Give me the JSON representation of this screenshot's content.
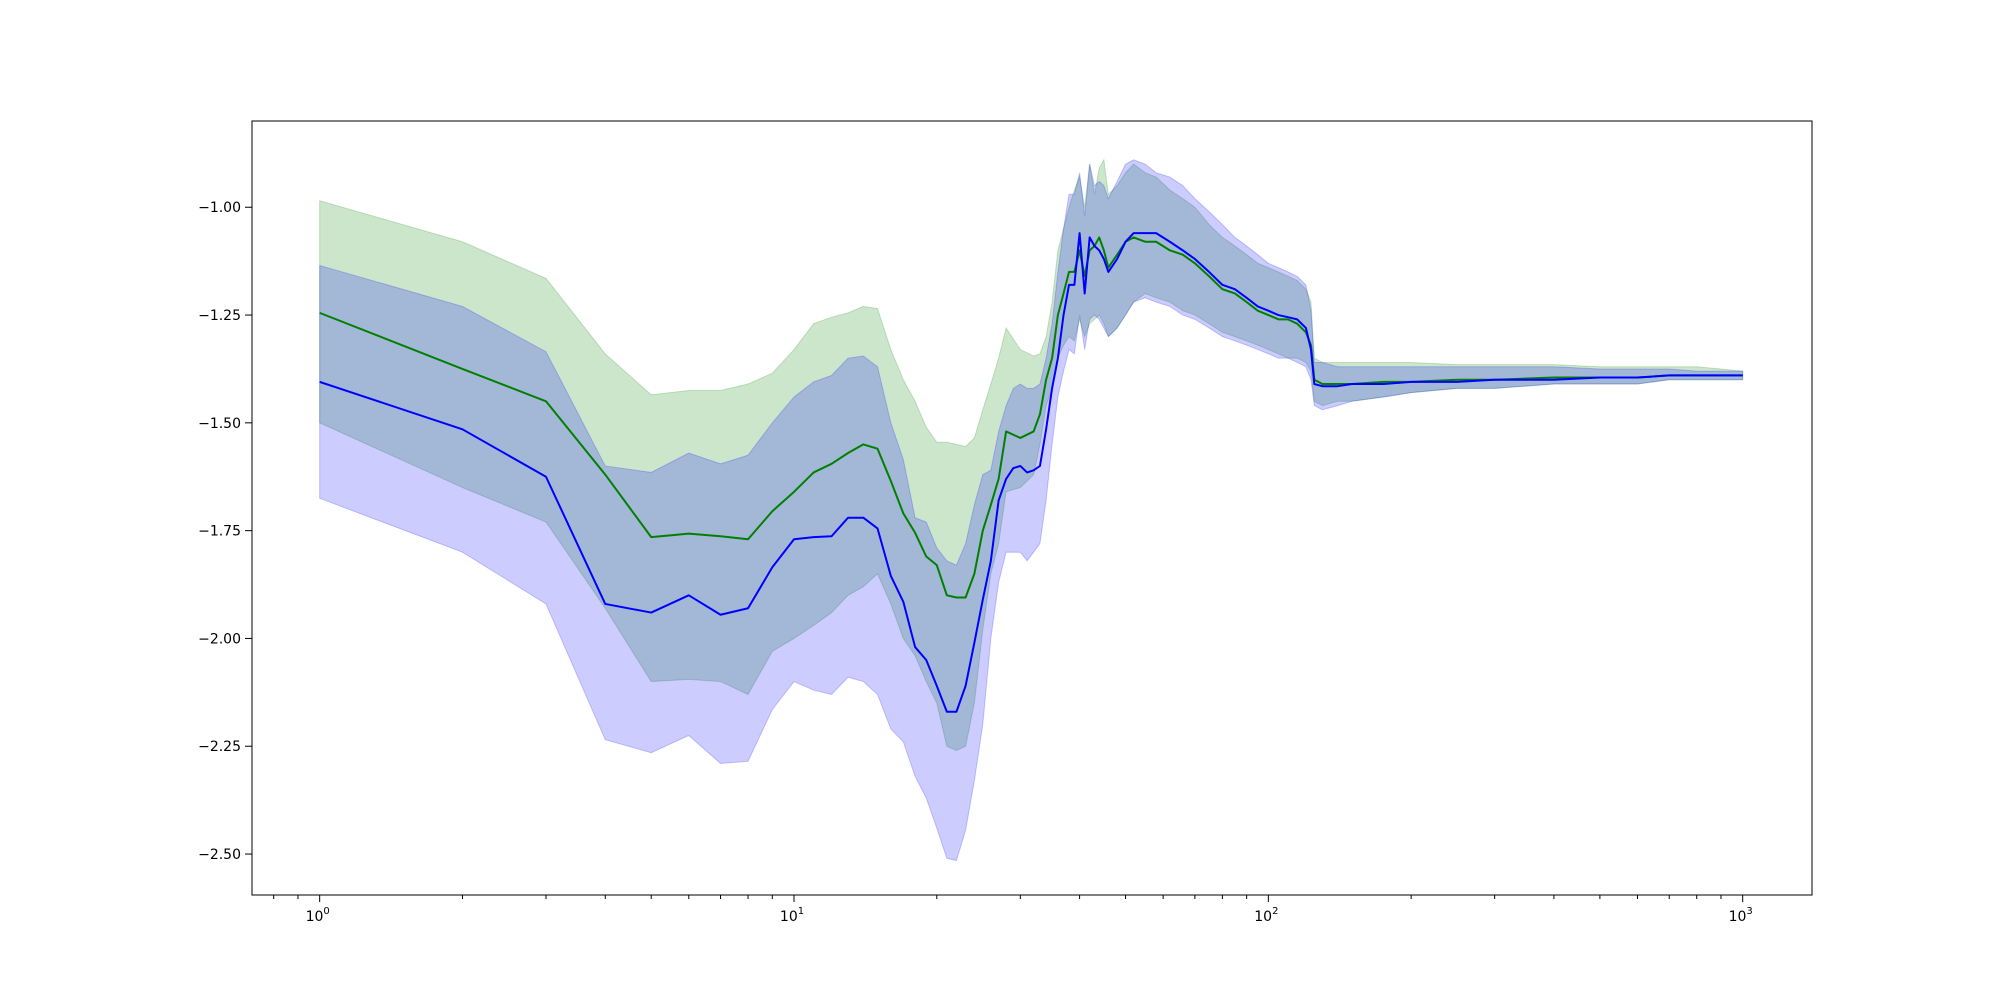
{
  "chart_data": {
    "type": "line",
    "title": "",
    "xlabel": "",
    "ylabel": "",
    "xscale": "log",
    "xlim": [
      0.72,
      1400
    ],
    "ylim": [
      -2.595,
      -0.8
    ],
    "grid": false,
    "legend": "none",
    "y_ticks": [
      -1.0,
      -1.25,
      -1.5,
      -1.75,
      -2.0,
      -2.25,
      -2.5
    ],
    "y_tick_labels": [
      "−1.00",
      "−1.25",
      "−1.50",
      "−1.75",
      "−2.00",
      "−2.25",
      "−2.50"
    ],
    "x_ticks": [
      {
        "value": 1,
        "base": "10",
        "exp": "0"
      },
      {
        "value": 10,
        "base": "10",
        "exp": "1"
      },
      {
        "value": 100,
        "base": "10",
        "exp": "2"
      },
      {
        "value": 1000,
        "base": "10",
        "exp": "3"
      }
    ],
    "series": [
      {
        "color": "#008000",
        "band_color": "#008000",
        "x": [
          1,
          2,
          3,
          4,
          5,
          6,
          7,
          8,
          9,
          10,
          11,
          12,
          13,
          14,
          15,
          16,
          17,
          18,
          19,
          20,
          21,
          22,
          23,
          24,
          25,
          26,
          27,
          28,
          30,
          32,
          33,
          34,
          35,
          36,
          37,
          38,
          39,
          40,
          41,
          42,
          43,
          44,
          45,
          46,
          48,
          50,
          52,
          55,
          58,
          62,
          66,
          70,
          75,
          80,
          85,
          90,
          95,
          100,
          105,
          110,
          115,
          120,
          123,
          125,
          130,
          140,
          150,
          175,
          200,
          250,
          300,
          400,
          500,
          600,
          700,
          800,
          900,
          1000
        ],
        "mean": [
          -1.245,
          -1.375,
          -1.45,
          -1.62,
          -1.765,
          -1.757,
          -1.763,
          -1.77,
          -1.705,
          -1.66,
          -1.615,
          -1.595,
          -1.57,
          -1.55,
          -1.56,
          -1.635,
          -1.71,
          -1.755,
          -1.81,
          -1.83,
          -1.9,
          -1.905,
          -1.905,
          -1.85,
          -1.75,
          -1.69,
          -1.63,
          -1.52,
          -1.535,
          -1.52,
          -1.48,
          -1.4,
          -1.35,
          -1.25,
          -1.2,
          -1.15,
          -1.15,
          -1.1,
          -1.16,
          -1.1,
          -1.09,
          -1.07,
          -1.1,
          -1.14,
          -1.11,
          -1.08,
          -1.07,
          -1.08,
          -1.08,
          -1.1,
          -1.11,
          -1.13,
          -1.16,
          -1.19,
          -1.2,
          -1.22,
          -1.24,
          -1.25,
          -1.26,
          -1.26,
          -1.27,
          -1.29,
          -1.32,
          -1.4,
          -1.41,
          -1.41,
          -1.41,
          -1.405,
          -1.405,
          -1.4,
          -1.4,
          -1.395,
          -1.395,
          -1.395,
          -1.39,
          -1.39,
          -1.39,
          -1.39
        ],
        "lower": [
          -1.5,
          -1.65,
          -1.73,
          -1.93,
          -2.1,
          -2.095,
          -2.1,
          -2.13,
          -2.03,
          -2.0,
          -1.97,
          -1.94,
          -1.9,
          -1.88,
          -1.85,
          -1.92,
          -2.0,
          -2.04,
          -2.1,
          -2.15,
          -2.25,
          -2.26,
          -2.25,
          -2.15,
          -1.98,
          -1.85,
          -1.78,
          -1.66,
          -1.65,
          -1.62,
          -1.55,
          -1.46,
          -1.42,
          -1.35,
          -1.32,
          -1.3,
          -1.31,
          -1.26,
          -1.3,
          -1.27,
          -1.26,
          -1.25,
          -1.27,
          -1.3,
          -1.28,
          -1.25,
          -1.22,
          -1.2,
          -1.21,
          -1.22,
          -1.24,
          -1.25,
          -1.27,
          -1.29,
          -1.3,
          -1.31,
          -1.32,
          -1.33,
          -1.34,
          -1.35,
          -1.35,
          -1.36,
          -1.38,
          -1.45,
          -1.46,
          -1.45,
          -1.45,
          -1.44,
          -1.43,
          -1.42,
          -1.42,
          -1.41,
          -1.41,
          -1.41,
          -1.4,
          -1.4,
          -1.4,
          -1.4
        ],
        "upper": [
          -0.985,
          -1.08,
          -1.165,
          -1.34,
          -1.435,
          -1.425,
          -1.425,
          -1.41,
          -1.385,
          -1.33,
          -1.27,
          -1.255,
          -1.245,
          -1.23,
          -1.235,
          -1.33,
          -1.4,
          -1.45,
          -1.51,
          -1.545,
          -1.545,
          -1.55,
          -1.555,
          -1.535,
          -1.47,
          -1.41,
          -1.35,
          -1.28,
          -1.33,
          -1.345,
          -1.34,
          -1.3,
          -1.22,
          -1.1,
          -1.05,
          -1.0,
          -0.96,
          -0.93,
          -1.0,
          -0.9,
          -0.97,
          -0.91,
          -0.89,
          -0.97,
          -0.95,
          -0.92,
          -0.9,
          -0.92,
          -0.93,
          -0.96,
          -0.98,
          -1.0,
          -1.04,
          -1.07,
          -1.09,
          -1.11,
          -1.13,
          -1.14,
          -1.15,
          -1.16,
          -1.17,
          -1.19,
          -1.22,
          -1.35,
          -1.36,
          -1.36,
          -1.36,
          -1.36,
          -1.36,
          -1.365,
          -1.365,
          -1.365,
          -1.37,
          -1.37,
          -1.37,
          -1.37,
          -1.375,
          -1.38
        ]
      },
      {
        "color": "#0000ff",
        "band_color": "#0000ff",
        "x": [
          1,
          2,
          3,
          4,
          5,
          6,
          7,
          8,
          9,
          10,
          11,
          12,
          13,
          14,
          15,
          16,
          17,
          18,
          19,
          20,
          21,
          22,
          23,
          24,
          25,
          26,
          27,
          28,
          29,
          30,
          31,
          32,
          33,
          34,
          35,
          36,
          37,
          38,
          39,
          40,
          41,
          42,
          43,
          44,
          45,
          46,
          48,
          50,
          52,
          55,
          58,
          62,
          66,
          70,
          75,
          80,
          85,
          90,
          95,
          100,
          105,
          110,
          115,
          120,
          123,
          125,
          130,
          140,
          150,
          175,
          200,
          250,
          300,
          400,
          500,
          600,
          700,
          800,
          900,
          1000
        ],
        "mean": [
          -1.405,
          -1.515,
          -1.625,
          -1.92,
          -1.94,
          -1.9,
          -1.945,
          -1.93,
          -1.835,
          -1.77,
          -1.765,
          -1.763,
          -1.72,
          -1.72,
          -1.745,
          -1.855,
          -1.915,
          -2.02,
          -2.05,
          -2.11,
          -2.17,
          -2.17,
          -2.11,
          -2.01,
          -1.91,
          -1.82,
          -1.68,
          -1.63,
          -1.605,
          -1.6,
          -1.615,
          -1.61,
          -1.6,
          -1.515,
          -1.42,
          -1.35,
          -1.25,
          -1.18,
          -1.18,
          -1.06,
          -1.2,
          -1.07,
          -1.09,
          -1.1,
          -1.12,
          -1.15,
          -1.12,
          -1.08,
          -1.06,
          -1.06,
          -1.06,
          -1.08,
          -1.1,
          -1.12,
          -1.15,
          -1.18,
          -1.19,
          -1.21,
          -1.23,
          -1.24,
          -1.25,
          -1.255,
          -1.26,
          -1.28,
          -1.33,
          -1.41,
          -1.415,
          -1.415,
          -1.41,
          -1.41,
          -1.405,
          -1.405,
          -1.4,
          -1.4,
          -1.395,
          -1.395,
          -1.39,
          -1.39,
          -1.39,
          -1.39
        ],
        "lower": [
          -1.675,
          -1.8,
          -1.92,
          -2.235,
          -2.265,
          -2.225,
          -2.29,
          -2.285,
          -2.165,
          -2.1,
          -2.12,
          -2.13,
          -2.09,
          -2.1,
          -2.13,
          -2.21,
          -2.24,
          -2.32,
          -2.37,
          -2.44,
          -2.51,
          -2.515,
          -2.445,
          -2.33,
          -2.2,
          -2.0,
          -1.87,
          -1.8,
          -1.8,
          -1.8,
          -1.82,
          -1.8,
          -1.78,
          -1.68,
          -1.55,
          -1.44,
          -1.38,
          -1.33,
          -1.34,
          -1.25,
          -1.33,
          -1.26,
          -1.25,
          -1.26,
          -1.28,
          -1.3,
          -1.28,
          -1.25,
          -1.22,
          -1.21,
          -1.22,
          -1.23,
          -1.25,
          -1.26,
          -1.28,
          -1.3,
          -1.31,
          -1.32,
          -1.33,
          -1.34,
          -1.35,
          -1.35,
          -1.36,
          -1.37,
          -1.4,
          -1.46,
          -1.47,
          -1.46,
          -1.45,
          -1.44,
          -1.43,
          -1.42,
          -1.42,
          -1.41,
          -1.41,
          -1.41,
          -1.4,
          -1.4,
          -1.4,
          -1.4
        ],
        "upper": [
          -1.135,
          -1.23,
          -1.335,
          -1.6,
          -1.615,
          -1.57,
          -1.595,
          -1.575,
          -1.5,
          -1.44,
          -1.405,
          -1.39,
          -1.35,
          -1.345,
          -1.37,
          -1.5,
          -1.585,
          -1.72,
          -1.73,
          -1.79,
          -1.82,
          -1.83,
          -1.78,
          -1.69,
          -1.62,
          -1.61,
          -1.52,
          -1.46,
          -1.42,
          -1.41,
          -1.42,
          -1.42,
          -1.41,
          -1.35,
          -1.27,
          -1.15,
          -1.05,
          -0.97,
          -0.97,
          -0.92,
          -1.02,
          -0.9,
          -0.95,
          -0.94,
          -0.95,
          -0.98,
          -0.94,
          -0.9,
          -0.89,
          -0.9,
          -0.92,
          -0.93,
          -0.95,
          -0.98,
          -1.01,
          -1.04,
          -1.07,
          -1.09,
          -1.11,
          -1.13,
          -1.14,
          -1.15,
          -1.16,
          -1.18,
          -1.24,
          -1.36,
          -1.36,
          -1.37,
          -1.37,
          -1.37,
          -1.37,
          -1.37,
          -1.37,
          -1.37,
          -1.375,
          -1.375,
          -1.375,
          -1.38,
          -1.38,
          -1.38
        ]
      }
    ]
  }
}
